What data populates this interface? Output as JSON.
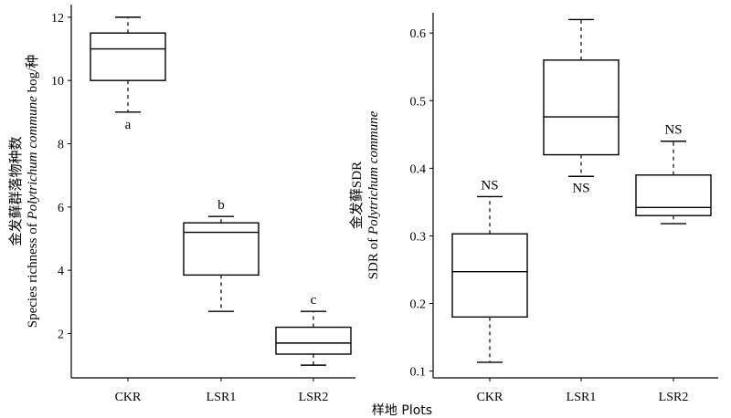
{
  "chart_data": [
    {
      "type": "box",
      "categories": [
        "CKR",
        "LSR1",
        "LSR2"
      ],
      "ylabel_line1": "金发藓群落物种数",
      "ylabel_line2_prefix": "Species richness of ",
      "ylabel_line2_species": "Polytrichum commune",
      "ylabel_line2_suffix": " bog/种",
      "yticks": [
        "2",
        "4",
        "6",
        "8",
        "10",
        "12"
      ],
      "ylim": [
        0.6,
        12.4
      ],
      "boxes": [
        {
          "category": "CKR",
          "min": 9.0,
          "q1": 10.0,
          "median": 11.0,
          "q3": 11.5,
          "max": 12.0,
          "annotation": "a"
        },
        {
          "category": "LSR1",
          "min": 2.7,
          "q1": 3.85,
          "median": 5.2,
          "q3": 5.5,
          "max": 5.7,
          "annotation": "b"
        },
        {
          "category": "LSR2",
          "min": 1.0,
          "q1": 1.35,
          "median": 1.7,
          "q3": 2.2,
          "max": 2.7,
          "annotation": "c"
        }
      ],
      "grid": false
    },
    {
      "type": "box",
      "categories": [
        "CKR",
        "LSR1",
        "LSR2"
      ],
      "ylabel_line1": "金发藓SDR",
      "ylabel_line2_prefix": "SDR of ",
      "ylabel_line2_species": "Polytrichum commune",
      "yticks": [
        "0.1",
        "0.2",
        "0.3",
        "0.4",
        "0.5",
        "0.6"
      ],
      "ylim": [
        0.09,
        0.63
      ],
      "boxes": [
        {
          "category": "CKR",
          "min": 0.113,
          "q1": 0.18,
          "median": 0.247,
          "q3": 0.303,
          "max": 0.358,
          "annotation": "NS"
        },
        {
          "category": "LSR1",
          "min": 0.388,
          "q1": 0.42,
          "median": 0.476,
          "q3": 0.56,
          "max": 0.62,
          "annotation": "NS"
        },
        {
          "category": "LSR2",
          "min": 0.318,
          "q1": 0.33,
          "median": 0.342,
          "q3": 0.39,
          "max": 0.44,
          "annotation": "NS"
        }
      ],
      "grid": false
    }
  ],
  "xlabel": "样地 Plots"
}
